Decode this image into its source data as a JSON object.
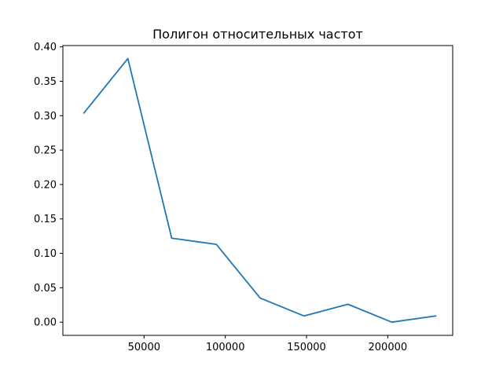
{
  "chart_data": {
    "type": "line",
    "title": "Полигон относительных частот",
    "xlabel": "",
    "ylabel": "",
    "xlim": [
      -0.6,
      240000
    ],
    "ylim": [
      -0.0192,
      0.4019
    ],
    "x_ticks": [
      50000,
      100000,
      150000,
      200000
    ],
    "x_tick_labels": [
      "50000",
      "100000",
      "150000",
      "200000"
    ],
    "y_ticks": [
      0.0,
      0.05,
      0.1,
      0.15,
      0.2,
      0.25,
      0.3,
      0.35,
      0.4
    ],
    "y_tick_labels": [
      "0.00",
      "0.05",
      "0.10",
      "0.15",
      "0.20",
      "0.25",
      "0.30",
      "0.35",
      "0.40"
    ],
    "grid": false,
    "series": [
      {
        "color": "#1f77b4",
        "x": [
          13000,
          40000,
          67000,
          94500,
          121500,
          148500,
          175500,
          202500,
          229500
        ],
        "y": [
          0.304,
          0.383,
          0.122,
          0.113,
          0.035,
          0.009,
          0.026,
          0.0,
          0.009
        ]
      }
    ]
  }
}
